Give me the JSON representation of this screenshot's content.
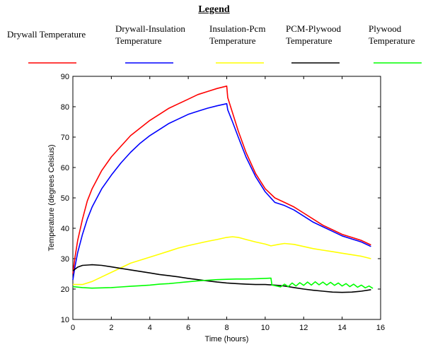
{
  "chart_data": {
    "type": "line",
    "title": "",
    "legend_title": "Legend",
    "legend_placement": "top",
    "xlabel": "Time (hours)",
    "ylabel": "Temperature (degrees Celsius)",
    "xlim": [
      0,
      16
    ],
    "ylim": [
      10,
      90
    ],
    "xticks": [
      0,
      2,
      4,
      6,
      8,
      10,
      12,
      14,
      16
    ],
    "yticks": [
      10,
      20,
      30,
      40,
      50,
      60,
      70,
      80,
      90
    ],
    "grid": false,
    "series": [
      {
        "name": "Drywall Temperature",
        "color": "#ff0000",
        "points": [
          [
            0,
            25
          ],
          [
            0.1,
            30
          ],
          [
            0.25,
            36
          ],
          [
            0.5,
            43
          ],
          [
            0.75,
            49
          ],
          [
            1,
            53
          ],
          [
            1.5,
            59
          ],
          [
            2,
            63.5
          ],
          [
            2.5,
            67
          ],
          [
            3,
            70.5
          ],
          [
            3.5,
            73
          ],
          [
            4,
            75.5
          ],
          [
            4.5,
            77.5
          ],
          [
            5,
            79.5
          ],
          [
            5.5,
            81
          ],
          [
            6,
            82.5
          ],
          [
            6.5,
            84
          ],
          [
            7,
            85
          ],
          [
            7.5,
            86
          ],
          [
            8,
            86.8
          ],
          [
            8.05,
            83
          ],
          [
            8.3,
            78
          ],
          [
            8.6,
            72
          ],
          [
            9,
            65
          ],
          [
            9.5,
            58
          ],
          [
            10,
            53
          ],
          [
            10.5,
            50
          ],
          [
            11,
            48.5
          ],
          [
            11.5,
            47
          ],
          [
            12,
            45
          ],
          [
            12.5,
            43
          ],
          [
            13,
            41
          ],
          [
            13.5,
            39.5
          ],
          [
            14,
            38
          ],
          [
            14.5,
            37
          ],
          [
            15,
            36
          ],
          [
            15.5,
            34.5
          ]
        ]
      },
      {
        "name": "Drywall-Insulation Temperature",
        "color": "#0000ff",
        "points": [
          [
            0,
            23
          ],
          [
            0.1,
            27
          ],
          [
            0.25,
            32
          ],
          [
            0.5,
            38
          ],
          [
            0.75,
            43
          ],
          [
            1,
            47
          ],
          [
            1.5,
            53
          ],
          [
            2,
            57.5
          ],
          [
            2.5,
            61.5
          ],
          [
            3,
            65
          ],
          [
            3.5,
            68
          ],
          [
            4,
            70.5
          ],
          [
            4.5,
            72.5
          ],
          [
            5,
            74.5
          ],
          [
            5.5,
            76
          ],
          [
            6,
            77.5
          ],
          [
            6.5,
            78.5
          ],
          [
            7,
            79.5
          ],
          [
            7.5,
            80.3
          ],
          [
            8,
            81
          ],
          [
            8.05,
            79
          ],
          [
            8.3,
            75
          ],
          [
            8.6,
            70
          ],
          [
            9,
            63.5
          ],
          [
            9.5,
            57
          ],
          [
            10,
            52
          ],
          [
            10.5,
            48.5
          ],
          [
            11,
            47.5
          ],
          [
            11.5,
            46
          ],
          [
            12,
            44
          ],
          [
            12.5,
            42
          ],
          [
            13,
            40.5
          ],
          [
            13.5,
            39
          ],
          [
            14,
            37.5
          ],
          [
            14.5,
            36.5
          ],
          [
            15,
            35.5
          ],
          [
            15.5,
            34
          ]
        ]
      },
      {
        "name": "Insulation-Pcm Temperature",
        "color": "#ffff00",
        "points": [
          [
            0,
            21.5
          ],
          [
            0.5,
            21.5
          ],
          [
            1,
            22.5
          ],
          [
            1.5,
            24
          ],
          [
            2,
            25.5
          ],
          [
            2.5,
            27
          ],
          [
            3,
            28.5
          ],
          [
            3.5,
            29.5
          ],
          [
            4,
            30.5
          ],
          [
            4.5,
            31.5
          ],
          [
            5,
            32.5
          ],
          [
            5.5,
            33.5
          ],
          [
            6,
            34.3
          ],
          [
            6.5,
            35
          ],
          [
            7,
            35.7
          ],
          [
            7.5,
            36.3
          ],
          [
            8,
            37
          ],
          [
            8.3,
            37.2
          ],
          [
            8.6,
            37
          ],
          [
            9,
            36.3
          ],
          [
            9.5,
            35.5
          ],
          [
            10,
            34.8
          ],
          [
            10.3,
            34.2
          ],
          [
            10.7,
            34.7
          ],
          [
            11,
            35
          ],
          [
            11.5,
            34.7
          ],
          [
            12,
            34
          ],
          [
            12.5,
            33.3
          ],
          [
            13,
            32.8
          ],
          [
            13.5,
            32.3
          ],
          [
            14,
            31.8
          ],
          [
            14.5,
            31.3
          ],
          [
            15,
            30.8
          ],
          [
            15.5,
            30
          ]
        ]
      },
      {
        "name": "PCM-Plywood Temperature",
        "color": "#000000",
        "points": [
          [
            0,
            26
          ],
          [
            0.25,
            27.2
          ],
          [
            0.5,
            27.8
          ],
          [
            1,
            28
          ],
          [
            1.5,
            27.8
          ],
          [
            2,
            27.3
          ],
          [
            2.5,
            26.8
          ],
          [
            3,
            26.3
          ],
          [
            3.5,
            25.8
          ],
          [
            4,
            25.3
          ],
          [
            4.5,
            24.8
          ],
          [
            5,
            24.4
          ],
          [
            5.5,
            24
          ],
          [
            6,
            23.5
          ],
          [
            6.5,
            23.1
          ],
          [
            7,
            22.7
          ],
          [
            7.5,
            22.3
          ],
          [
            8,
            22
          ],
          [
            8.5,
            21.8
          ],
          [
            9,
            21.6
          ],
          [
            9.5,
            21.5
          ],
          [
            10,
            21.5
          ],
          [
            10.5,
            21.3
          ],
          [
            11,
            21
          ],
          [
            11.5,
            20.5
          ],
          [
            12,
            20
          ],
          [
            12.5,
            19.6
          ],
          [
            13,
            19.3
          ],
          [
            13.5,
            19
          ],
          [
            14,
            18.9
          ],
          [
            14.5,
            19
          ],
          [
            15,
            19.3
          ],
          [
            15.5,
            19.8
          ]
        ]
      },
      {
        "name": "Plywood Temperature",
        "color": "#00ff00",
        "points": [
          [
            0,
            20.8
          ],
          [
            0.5,
            20.5
          ],
          [
            1,
            20.3
          ],
          [
            1.5,
            20.4
          ],
          [
            2,
            20.5
          ],
          [
            2.5,
            20.7
          ],
          [
            3,
            20.9
          ],
          [
            3.5,
            21.1
          ],
          [
            4,
            21.3
          ],
          [
            4.5,
            21.6
          ],
          [
            5,
            21.8
          ],
          [
            5.5,
            22.1
          ],
          [
            6,
            22.4
          ],
          [
            6.5,
            22.7
          ],
          [
            7,
            22.9
          ],
          [
            7.5,
            23.1
          ],
          [
            8,
            23.2
          ],
          [
            8.5,
            23.3
          ],
          [
            9,
            23.3
          ],
          [
            9.5,
            23.4
          ],
          [
            10,
            23.5
          ],
          [
            10.3,
            23.6
          ],
          [
            10.35,
            21.3
          ],
          [
            10.6,
            21
          ],
          [
            10.8,
            20.7
          ],
          [
            11,
            21.6
          ],
          [
            11.2,
            20.8
          ],
          [
            11.4,
            22
          ],
          [
            11.6,
            21
          ],
          [
            11.8,
            22.1
          ],
          [
            12,
            21.2
          ],
          [
            12.2,
            22.3
          ],
          [
            12.4,
            21.3
          ],
          [
            12.6,
            22.4
          ],
          [
            12.8,
            21.4
          ],
          [
            13,
            22.3
          ],
          [
            13.2,
            21.3
          ],
          [
            13.4,
            22.2
          ],
          [
            13.6,
            21.2
          ],
          [
            13.8,
            22
          ],
          [
            14,
            21
          ],
          [
            14.2,
            21.8
          ],
          [
            14.4,
            20.8
          ],
          [
            14.6,
            21.6
          ],
          [
            14.8,
            20.6
          ],
          [
            15,
            21.3
          ],
          [
            15.2,
            20.4
          ],
          [
            15.4,
            21
          ],
          [
            15.6,
            20.2
          ]
        ]
      }
    ]
  }
}
